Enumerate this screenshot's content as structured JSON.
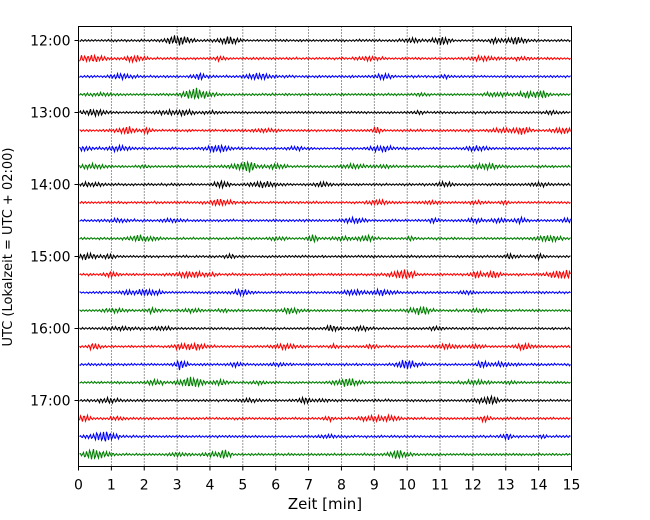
{
  "chart_data": {
    "type": "line",
    "title": "",
    "xlabel": "Zeit  [min]",
    "ylabel": "UTC (Lokalzeit = UTC + 02:00)",
    "xlim": [
      0,
      15
    ],
    "x_ticks": [
      "0",
      "1",
      "2",
      "3",
      "4",
      "5",
      "6",
      "7",
      "8",
      "9",
      "10",
      "11",
      "12",
      "13",
      "14",
      "15"
    ],
    "y_ticks": [
      "12:00",
      "13:00",
      "14:00",
      "15:00",
      "16:00",
      "17:00"
    ],
    "grid": "vertical dotted at each minute",
    "trace_interval_minutes": 15,
    "start_time": "12:00",
    "trace_colors": [
      "#000000",
      "#ff0000",
      "#0000ff",
      "#008000"
    ],
    "traces": [
      {
        "time": "12:00"
      },
      {
        "time": "12:15"
      },
      {
        "time": "12:30"
      },
      {
        "time": "12:45"
      },
      {
        "time": "13:00"
      },
      {
        "time": "13:15"
      },
      {
        "time": "13:30"
      },
      {
        "time": "13:45"
      },
      {
        "time": "14:00"
      },
      {
        "time": "14:15"
      },
      {
        "time": "14:30"
      },
      {
        "time": "14:45"
      },
      {
        "time": "15:00"
      },
      {
        "time": "15:15"
      },
      {
        "time": "15:30"
      },
      {
        "time": "15:45"
      },
      {
        "time": "16:00"
      },
      {
        "time": "16:15"
      },
      {
        "time": "16:30"
      },
      {
        "time": "16:45"
      },
      {
        "time": "17:00"
      },
      {
        "time": "17:15"
      },
      {
        "time": "17:30"
      },
      {
        "time": "17:45"
      }
    ]
  }
}
